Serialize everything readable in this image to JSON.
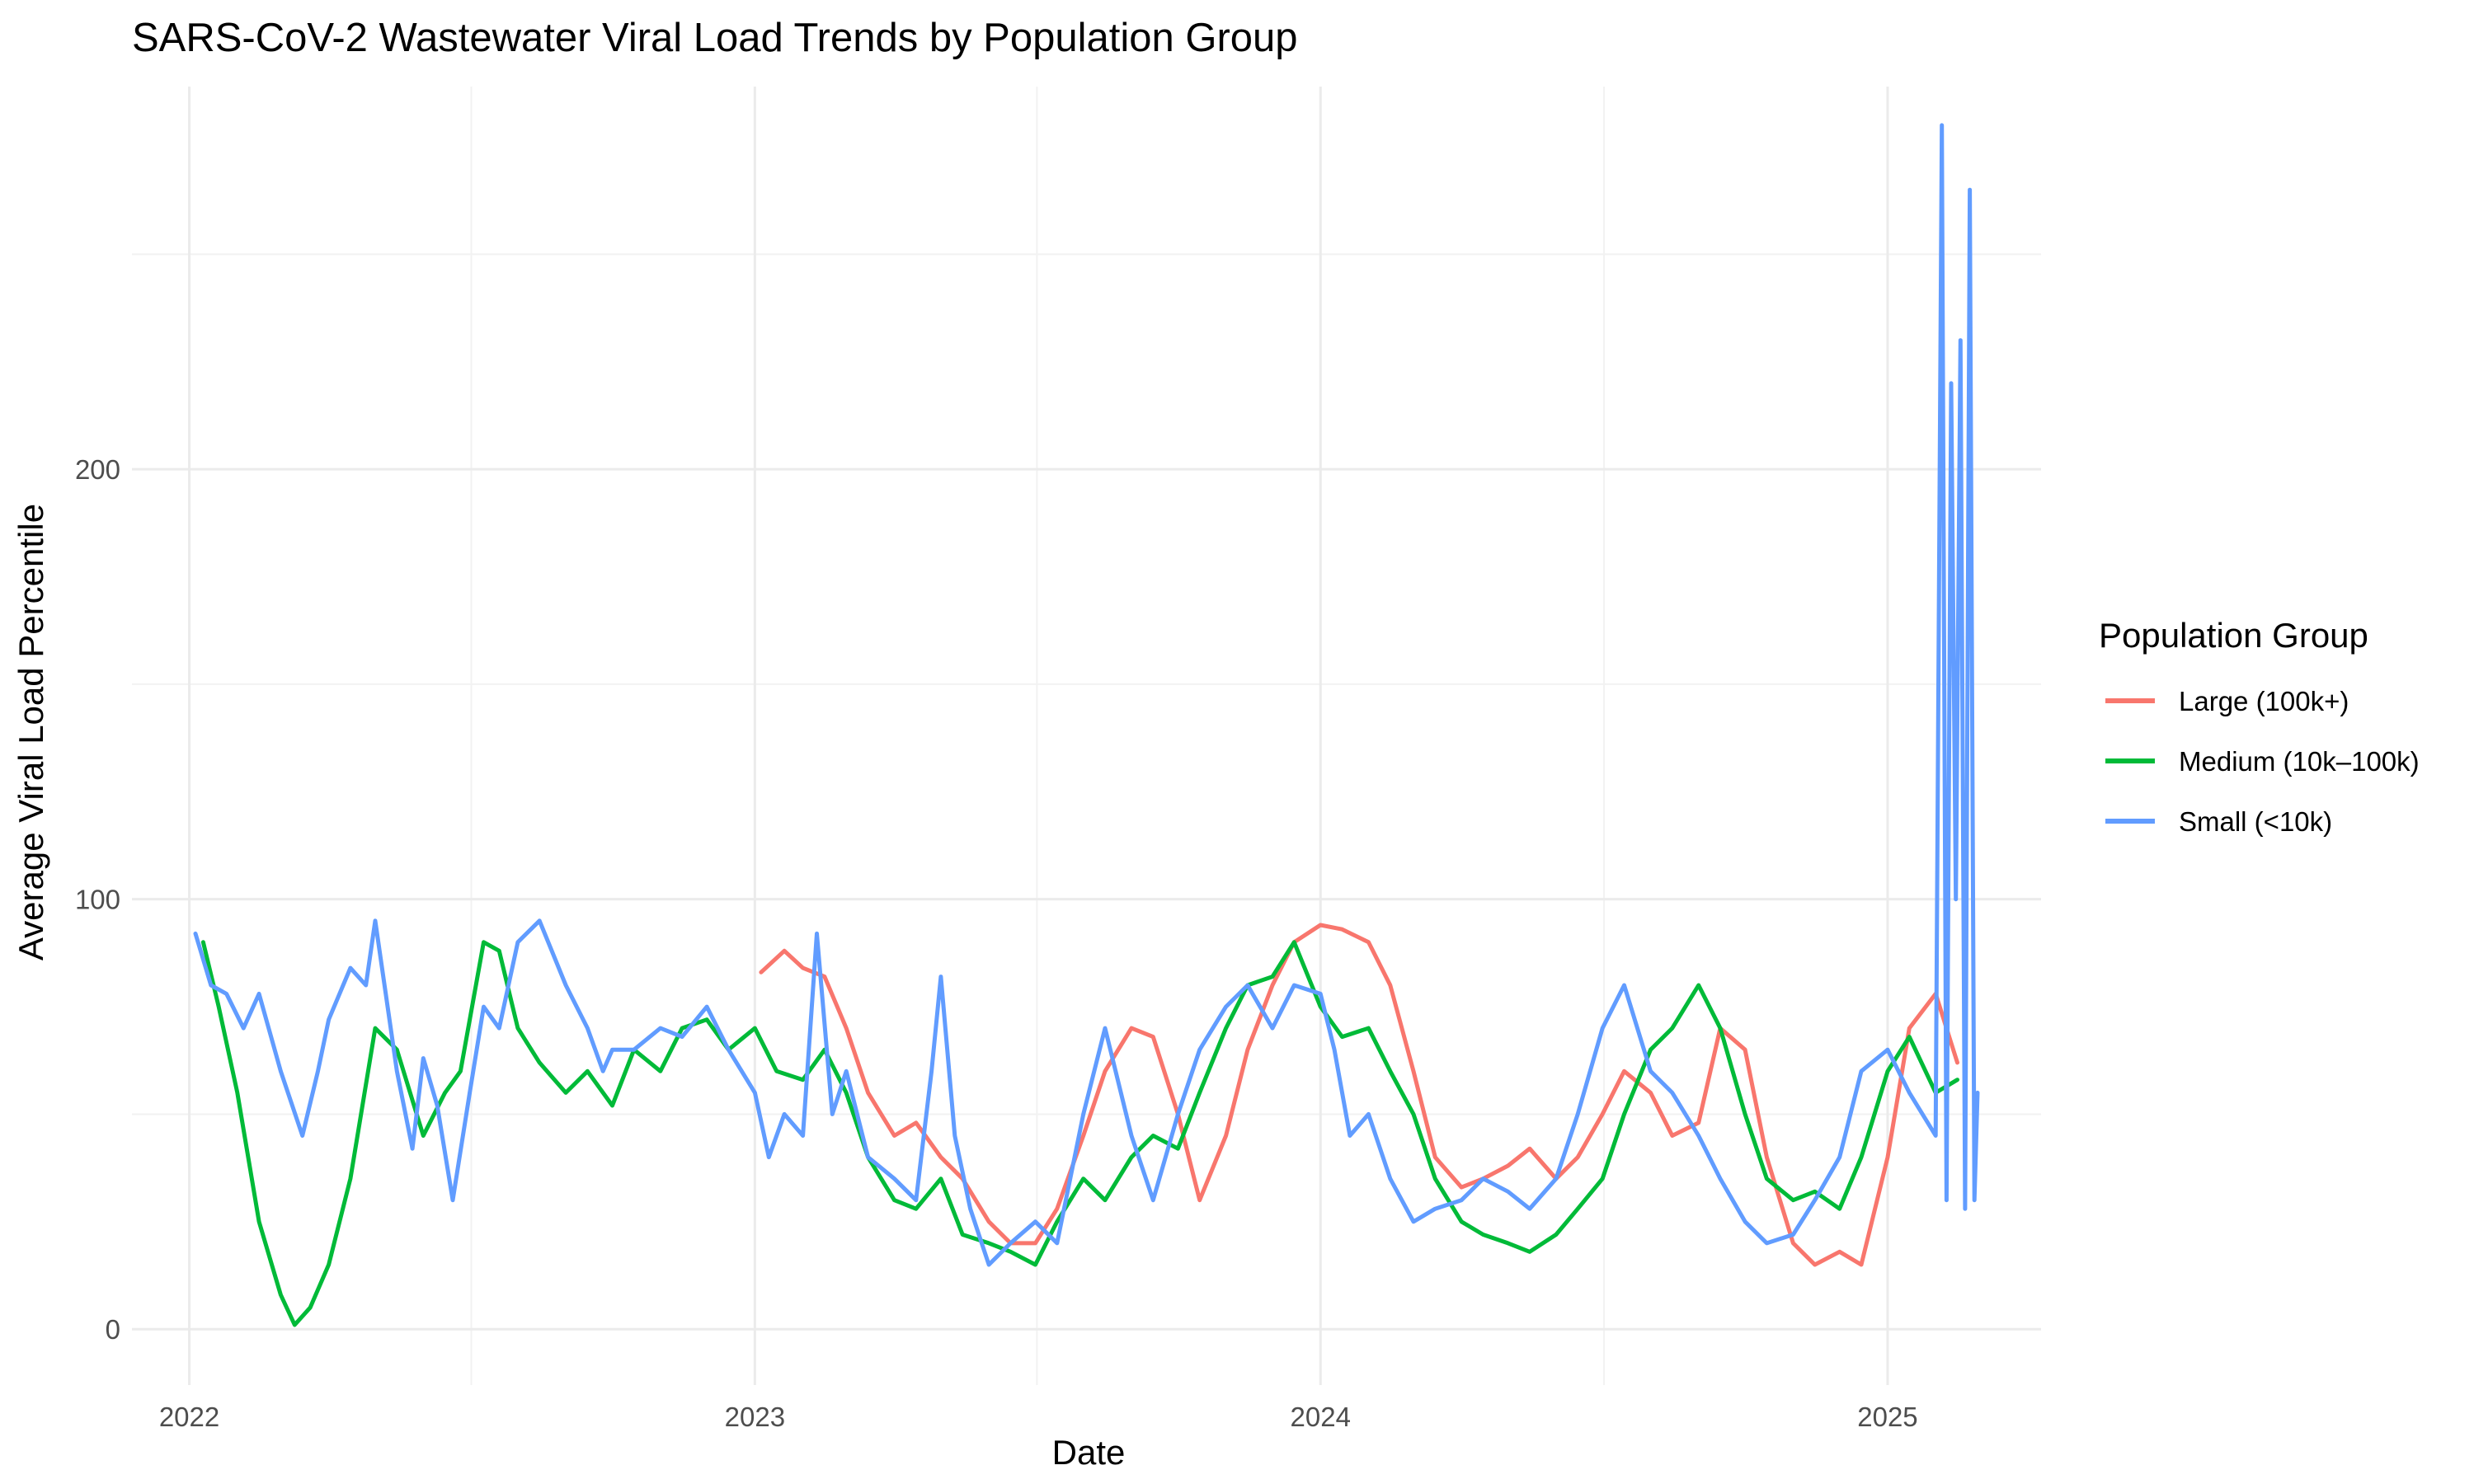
{
  "chart_data": {
    "type": "line",
    "title": "SARS-CoV-2 Wastewater Viral Load Trends by Population Group",
    "xlabel": "Date",
    "ylabel": "Average Viral Load Percentile",
    "x_type": "date",
    "xlim": [
      "2021-11-25",
      "2025-04-10"
    ],
    "ylim": [
      -13,
      289
    ],
    "x_ticks": [
      "2022",
      "2023",
      "2024",
      "2025"
    ],
    "y_ticks": [
      0,
      100,
      200
    ],
    "grid": true,
    "legend": {
      "title": "Population Group",
      "position": "right"
    },
    "series": [
      {
        "name": "Large (100k+)",
        "color": "#F8766D",
        "x": [
          "2023-01-05",
          "2023-01-20",
          "2023-02-01",
          "2023-02-15",
          "2023-03-01",
          "2023-03-15",
          "2023-04-01",
          "2023-04-15",
          "2023-05-01",
          "2023-05-15",
          "2023-06-01",
          "2023-06-15",
          "2023-07-01",
          "2023-07-15",
          "2023-08-01",
          "2023-08-15",
          "2023-09-01",
          "2023-09-15",
          "2023-10-01",
          "2023-10-15",
          "2023-11-01",
          "2023-11-15",
          "2023-12-01",
          "2023-12-15",
          "2024-01-01",
          "2024-01-15",
          "2024-02-01",
          "2024-02-15",
          "2024-03-01",
          "2024-03-15",
          "2024-04-01",
          "2024-04-15",
          "2024-05-01",
          "2024-05-15",
          "2024-06-01",
          "2024-06-15",
          "2024-07-01",
          "2024-07-15",
          "2024-08-01",
          "2024-08-15",
          "2024-09-01",
          "2024-09-15",
          "2024-10-01",
          "2024-10-15",
          "2024-11-01",
          "2024-11-15",
          "2024-12-01",
          "2024-12-15",
          "2025-01-01",
          "2025-01-15",
          "2025-02-01",
          "2025-02-15"
        ],
        "y": [
          83,
          88,
          84,
          82,
          70,
          55,
          45,
          48,
          40,
          35,
          25,
          20,
          20,
          28,
          45,
          60,
          70,
          68,
          50,
          30,
          45,
          65,
          80,
          90,
          94,
          93,
          90,
          80,
          60,
          40,
          33,
          35,
          38,
          42,
          35,
          40,
          50,
          60,
          55,
          45,
          48,
          70,
          65,
          40,
          20,
          15,
          18,
          15,
          40,
          70,
          78,
          62
        ]
      },
      {
        "name": "Medium (10k–100k)",
        "color": "#00BA38",
        "x": [
          "2022-01-10",
          "2022-01-20",
          "2022-02-01",
          "2022-02-15",
          "2022-03-01",
          "2022-03-10",
          "2022-03-20",
          "2022-04-01",
          "2022-04-15",
          "2022-05-01",
          "2022-05-15",
          "2022-06-01",
          "2022-06-15",
          "2022-06-25",
          "2022-07-10",
          "2022-07-20",
          "2022-08-01",
          "2022-08-15",
          "2022-09-01",
          "2022-09-15",
          "2022-10-01",
          "2022-10-15",
          "2022-11-01",
          "2022-11-15",
          "2022-12-01",
          "2022-12-15",
          "2023-01-01",
          "2023-01-15",
          "2023-02-01",
          "2023-02-15",
          "2023-03-01",
          "2023-03-15",
          "2023-04-01",
          "2023-04-15",
          "2023-05-01",
          "2023-05-15",
          "2023-06-01",
          "2023-06-15",
          "2023-07-01",
          "2023-07-15",
          "2023-08-01",
          "2023-08-15",
          "2023-09-01",
          "2023-09-15",
          "2023-10-01",
          "2023-10-15",
          "2023-11-01",
          "2023-11-15",
          "2023-12-01",
          "2023-12-15",
          "2024-01-01",
          "2024-01-15",
          "2024-02-01",
          "2024-02-15",
          "2024-03-01",
          "2024-03-15",
          "2024-04-01",
          "2024-04-15",
          "2024-05-01",
          "2024-05-15",
          "2024-06-01",
          "2024-06-15",
          "2024-07-01",
          "2024-07-15",
          "2024-08-01",
          "2024-08-15",
          "2024-09-01",
          "2024-09-15",
          "2024-10-01",
          "2024-10-15",
          "2024-11-01",
          "2024-11-15",
          "2024-12-01",
          "2024-12-15",
          "2025-01-01",
          "2025-01-15",
          "2025-02-01",
          "2025-02-15"
        ],
        "y": [
          90,
          75,
          55,
          25,
          8,
          1,
          5,
          15,
          35,
          70,
          65,
          45,
          55,
          60,
          90,
          88,
          70,
          62,
          55,
          60,
          52,
          65,
          60,
          70,
          72,
          65,
          70,
          60,
          58,
          65,
          55,
          40,
          30,
          28,
          35,
          22,
          20,
          18,
          15,
          25,
          35,
          30,
          40,
          45,
          42,
          55,
          70,
          80,
          82,
          90,
          75,
          68,
          70,
          60,
          50,
          35,
          25,
          22,
          20,
          18,
          22,
          28,
          35,
          50,
          65,
          70,
          80,
          70,
          50,
          35,
          30,
          32,
          28,
          40,
          60,
          68,
          55,
          58
        ]
      },
      {
        "name": "Small (<10k)",
        "color": "#619CFF",
        "x": [
          "2022-01-05",
          "2022-01-15",
          "2022-01-25",
          "2022-02-05",
          "2022-02-15",
          "2022-03-01",
          "2022-03-15",
          "2022-03-25",
          "2022-04-01",
          "2022-04-15",
          "2022-04-25",
          "2022-05-01",
          "2022-05-15",
          "2022-05-25",
          "2022-06-01",
          "2022-06-10",
          "2022-06-20",
          "2022-07-01",
          "2022-07-10",
          "2022-07-20",
          "2022-08-01",
          "2022-08-15",
          "2022-09-01",
          "2022-09-15",
          "2022-09-25",
          "2022-10-01",
          "2022-10-15",
          "2022-11-01",
          "2022-11-15",
          "2022-12-01",
          "2022-12-15",
          "2023-01-01",
          "2023-01-10",
          "2023-01-20",
          "2023-02-01",
          "2023-02-10",
          "2023-02-20",
          "2023-03-01",
          "2023-03-15",
          "2023-04-01",
          "2023-04-15",
          "2023-04-25",
          "2023-05-01",
          "2023-05-10",
          "2023-05-20",
          "2023-06-01",
          "2023-06-15",
          "2023-07-01",
          "2023-07-15",
          "2023-08-01",
          "2023-08-15",
          "2023-09-01",
          "2023-09-15",
          "2023-10-01",
          "2023-10-15",
          "2023-11-01",
          "2023-11-15",
          "2023-12-01",
          "2023-12-15",
          "2024-01-01",
          "2024-01-10",
          "2024-01-20",
          "2024-02-01",
          "2024-02-15",
          "2024-03-01",
          "2024-03-15",
          "2024-04-01",
          "2024-04-15",
          "2024-05-01",
          "2024-05-15",
          "2024-06-01",
          "2024-06-15",
          "2024-07-01",
          "2024-07-15",
          "2024-08-01",
          "2024-08-15",
          "2024-09-01",
          "2024-09-15",
          "2024-10-01",
          "2024-10-15",
          "2024-11-01",
          "2024-11-15",
          "2024-12-01",
          "2024-12-15",
          "2025-01-01",
          "2025-01-15",
          "2025-02-01",
          "2025-02-05",
          "2025-02-08",
          "2025-02-11",
          "2025-02-14",
          "2025-02-17",
          "2025-02-20",
          "2025-02-23",
          "2025-02-26",
          "2025-02-28"
        ],
        "y": [
          92,
          80,
          78,
          70,
          78,
          60,
          45,
          60,
          72,
          84,
          80,
          95,
          60,
          42,
          63,
          52,
          30,
          55,
          75,
          70,
          90,
          95,
          80,
          70,
          60,
          65,
          65,
          70,
          68,
          75,
          65,
          55,
          40,
          50,
          45,
          92,
          50,
          60,
          40,
          35,
          30,
          60,
          82,
          45,
          28,
          15,
          20,
          25,
          20,
          50,
          70,
          45,
          30,
          50,
          65,
          75,
          80,
          70,
          80,
          78,
          65,
          45,
          50,
          35,
          25,
          28,
          30,
          35,
          32,
          28,
          35,
          50,
          70,
          80,
          60,
          55,
          45,
          35,
          25,
          20,
          22,
          30,
          40,
          60,
          65,
          55,
          45,
          280,
          30,
          220,
          100,
          230,
          28,
          265,
          30,
          55
        ]
      }
    ]
  }
}
